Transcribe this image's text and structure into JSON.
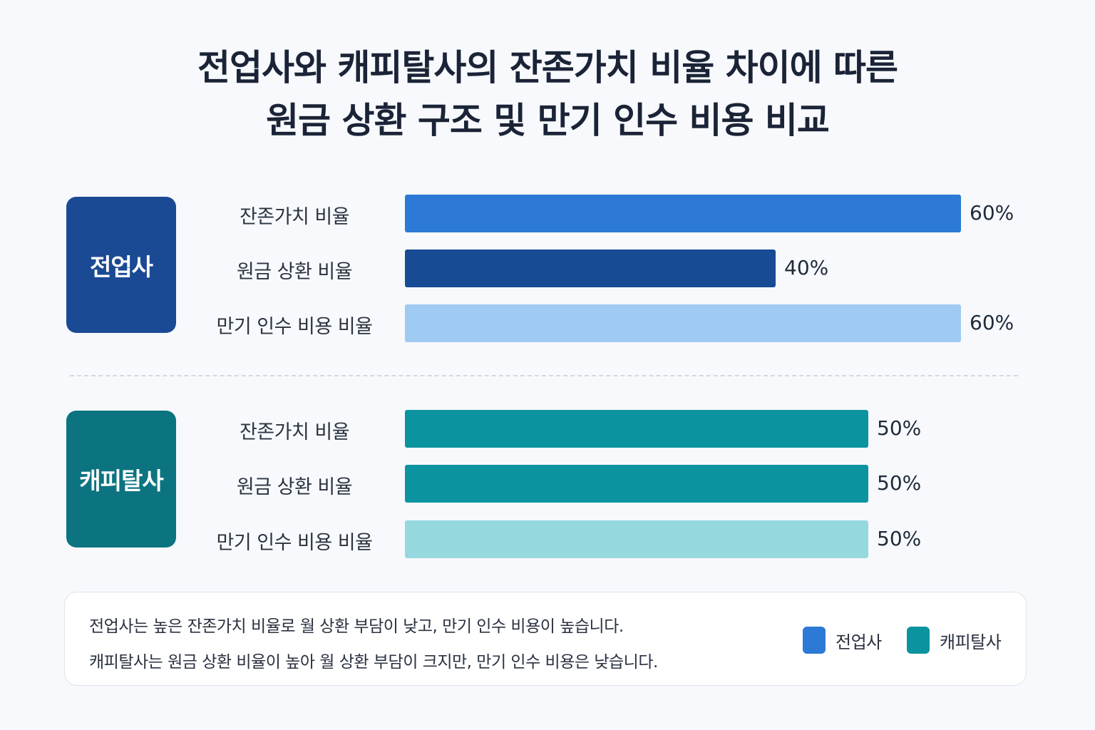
{
  "title_lines": [
    "전업사와 캐피탈사의 잔존가치 비율 차이에 따른",
    "원금 상환 구조 및 만기 인수 비용 비교"
  ],
  "chart_data": {
    "type": "bar",
    "orientation": "horizontal",
    "title": "전업사와 캐피탈사의 잔존가치 비율 차이에 따른 원금 상환 구조 및 만기 인수 비용 비교",
    "categories": [
      "잔존가치 비율",
      "원금 상환 비율",
      "만기 인수 비용 비율"
    ],
    "value_suffix": "%",
    "xlim": [
      0,
      60
    ],
    "groups": [
      {
        "name": "전업사",
        "badge_color": "#1b4a94",
        "values": [
          60,
          40,
          60
        ],
        "colors": [
          "#2c79d6",
          "#174b93",
          "#9fcaf2"
        ]
      },
      {
        "name": "캐피탈사",
        "badge_color": "#0b7480",
        "values": [
          50,
          50,
          50
        ],
        "colors": [
          "#0b94a0",
          "#0b94a0",
          "#95d9de"
        ]
      }
    ]
  },
  "notes": [
    "전업사는 높은 잔존가치 비율로 월 상환 부담이 낮고, 만기 인수 비용이 높습니다.",
    "캐피탈사는 원금 상환 비율이 높아 월 상환 부담이 크지만, 만기 인수 비용은 낮습니다."
  ],
  "legend": [
    {
      "label": "전업사",
      "color": "#2c79d6"
    },
    {
      "label": "캐피탈사",
      "color": "#0b94a0"
    }
  ]
}
